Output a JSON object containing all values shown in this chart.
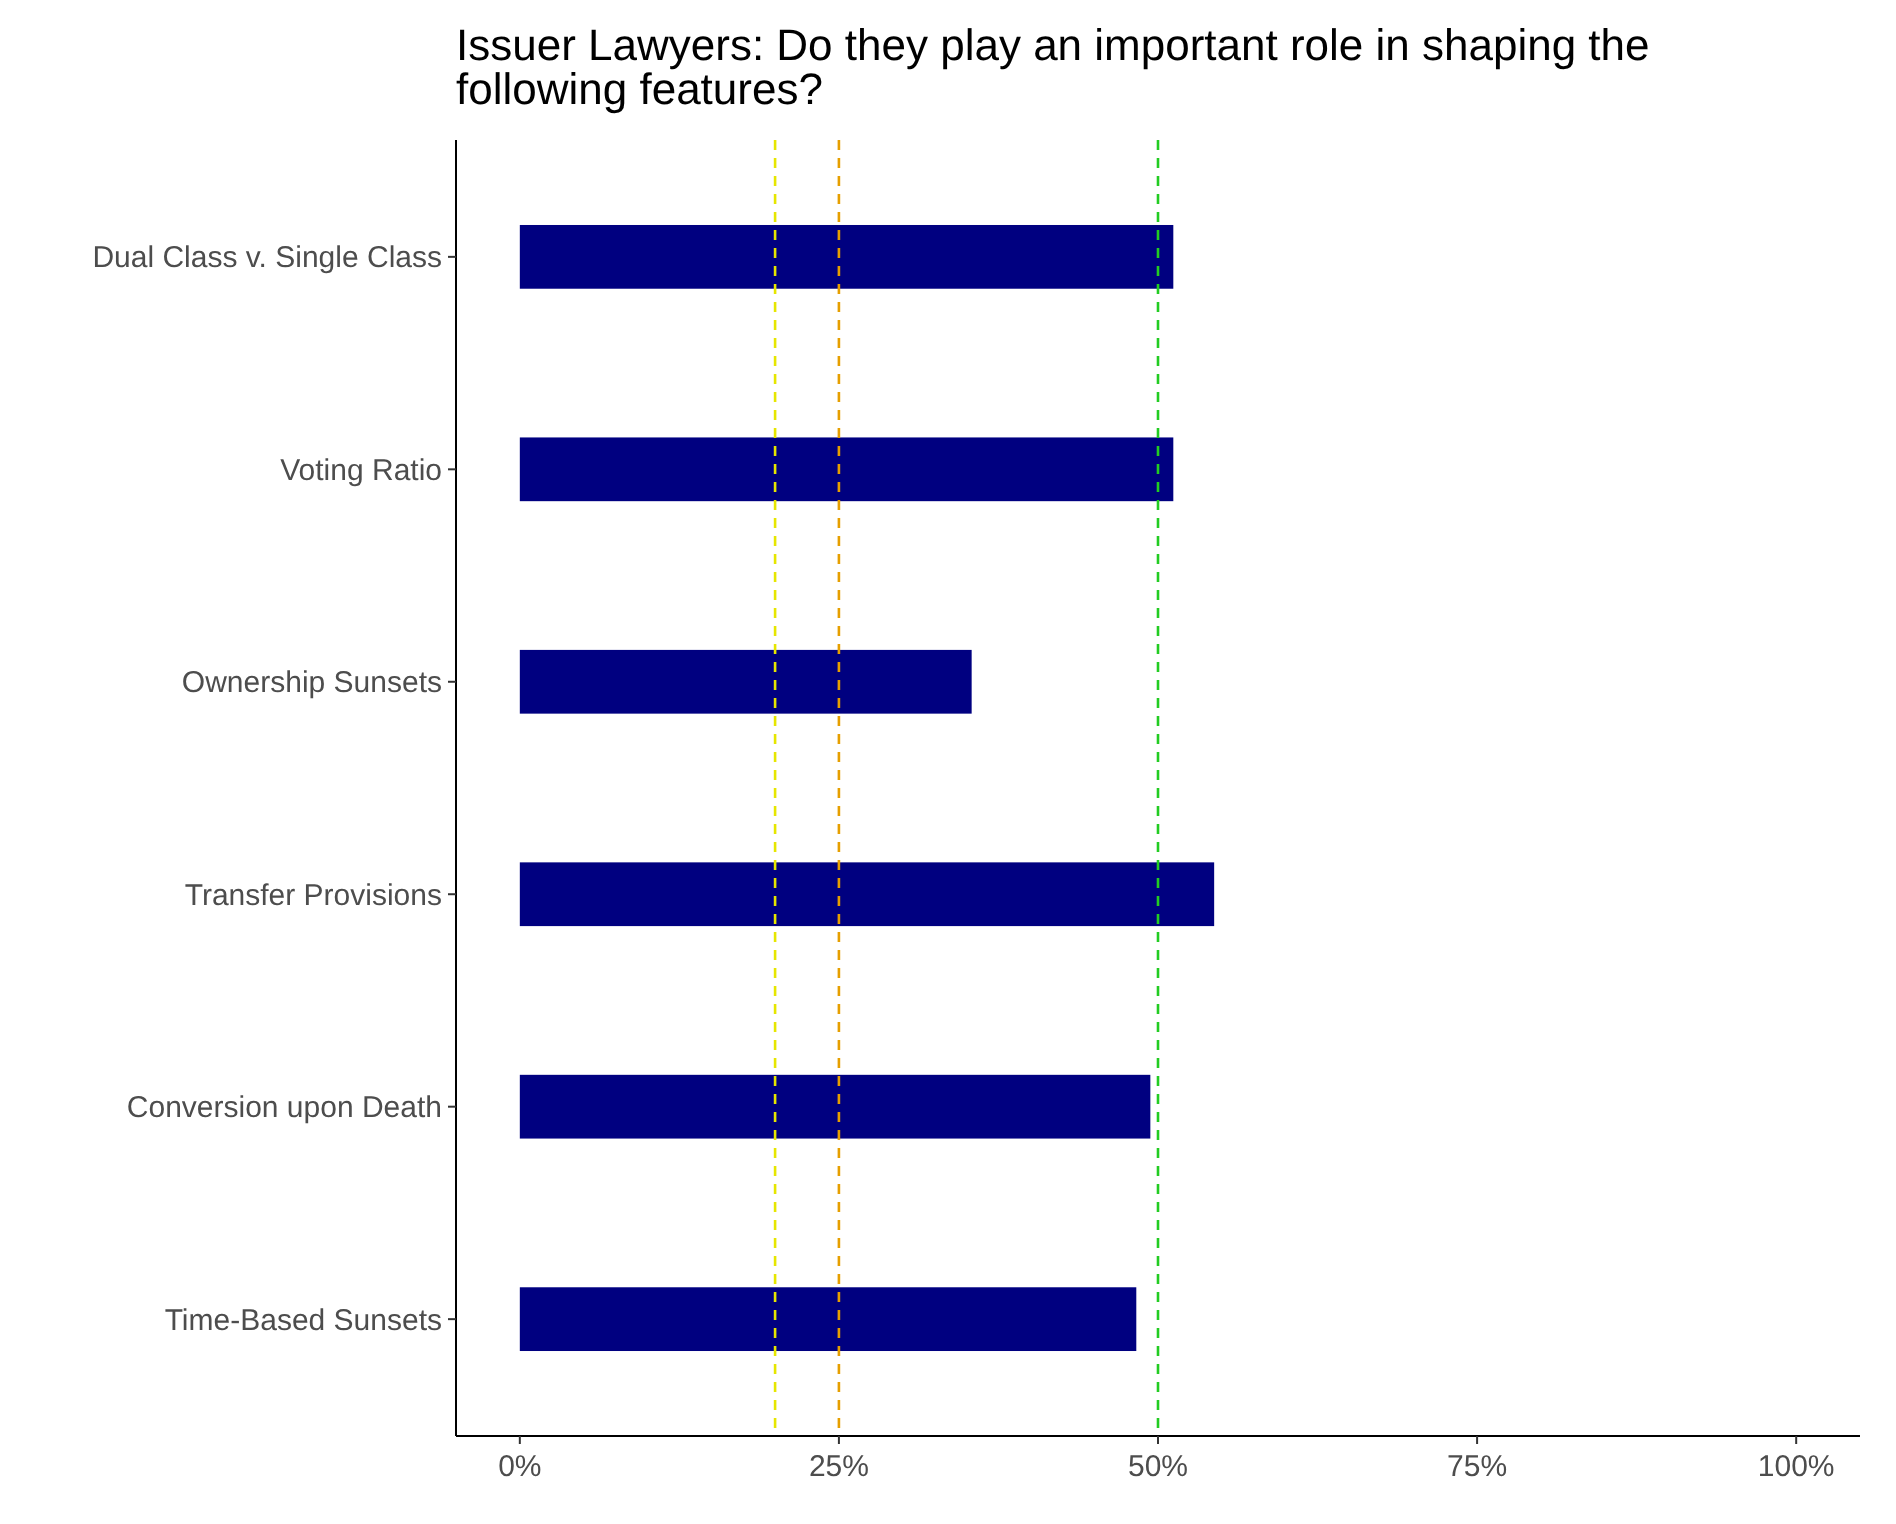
{
  "chart_data": {
    "type": "bar",
    "orientation": "horizontal",
    "title": "Issuer Lawyers: Do they play an important role in shaping the following features?",
    "categories": [
      "Dual Class v. Single Class",
      "Voting Ratio",
      "Ownership Sunsets",
      "Transfer Provisions",
      "Conversion upon Death",
      "Time-Based Sunsets"
    ],
    "values": [
      51.2,
      51.2,
      35.4,
      54.4,
      49.4,
      48.3
    ],
    "color": "#000080",
    "xlim": [
      -5,
      105
    ],
    "xticks": [
      {
        "value": 0,
        "label": "0%"
      },
      {
        "value": 25,
        "label": "25%"
      },
      {
        "value": 50,
        "label": "50%"
      },
      {
        "value": 75,
        "label": "75%"
      },
      {
        "value": 100,
        "label": "100%"
      }
    ],
    "ref_lines": [
      {
        "axis": "x",
        "value": 20,
        "color": "#e6e600",
        "line_style": "dashed"
      },
      {
        "axis": "x",
        "value": 25,
        "color": "#e69f00",
        "line_style": "dashed"
      },
      {
        "axis": "x",
        "value": 50,
        "color": "#22cc22",
        "line_style": "dashed"
      }
    ],
    "grid": false
  }
}
